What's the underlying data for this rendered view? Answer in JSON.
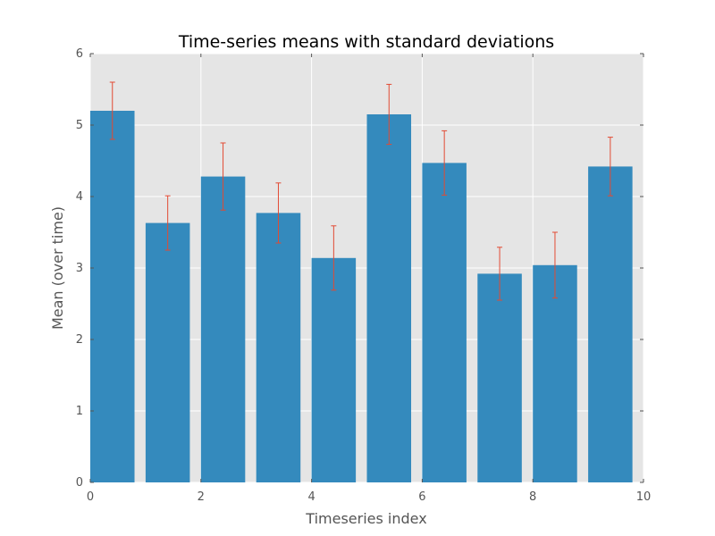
{
  "chart_data": {
    "type": "bar",
    "title": "Time-series means with standard deviations",
    "xlabel": "Timeseries index",
    "ylabel": "Mean (over time)",
    "x": [
      0,
      1,
      2,
      3,
      4,
      5,
      6,
      7,
      8,
      9
    ],
    "values": [
      5.2,
      3.63,
      4.28,
      3.77,
      3.14,
      5.15,
      4.47,
      2.92,
      3.04,
      4.42
    ],
    "errors": [
      0.4,
      0.38,
      0.47,
      0.42,
      0.45,
      0.42,
      0.45,
      0.37,
      0.46,
      0.41
    ],
    "bar_width": 0.8,
    "xlim": [
      0,
      10
    ],
    "ylim": [
      0,
      6
    ],
    "xticks": [
      "0",
      "2",
      "4",
      "6",
      "8",
      "10"
    ],
    "yticks": [
      "0",
      "1",
      "2",
      "3",
      "4",
      "5",
      "6"
    ],
    "grid": true,
    "legend": "none",
    "colors": {
      "bar": "#348abd",
      "error": "#e24a33",
      "plot_background": "#e5e5e5",
      "grid": "#ffffff",
      "text": "#555555"
    }
  }
}
